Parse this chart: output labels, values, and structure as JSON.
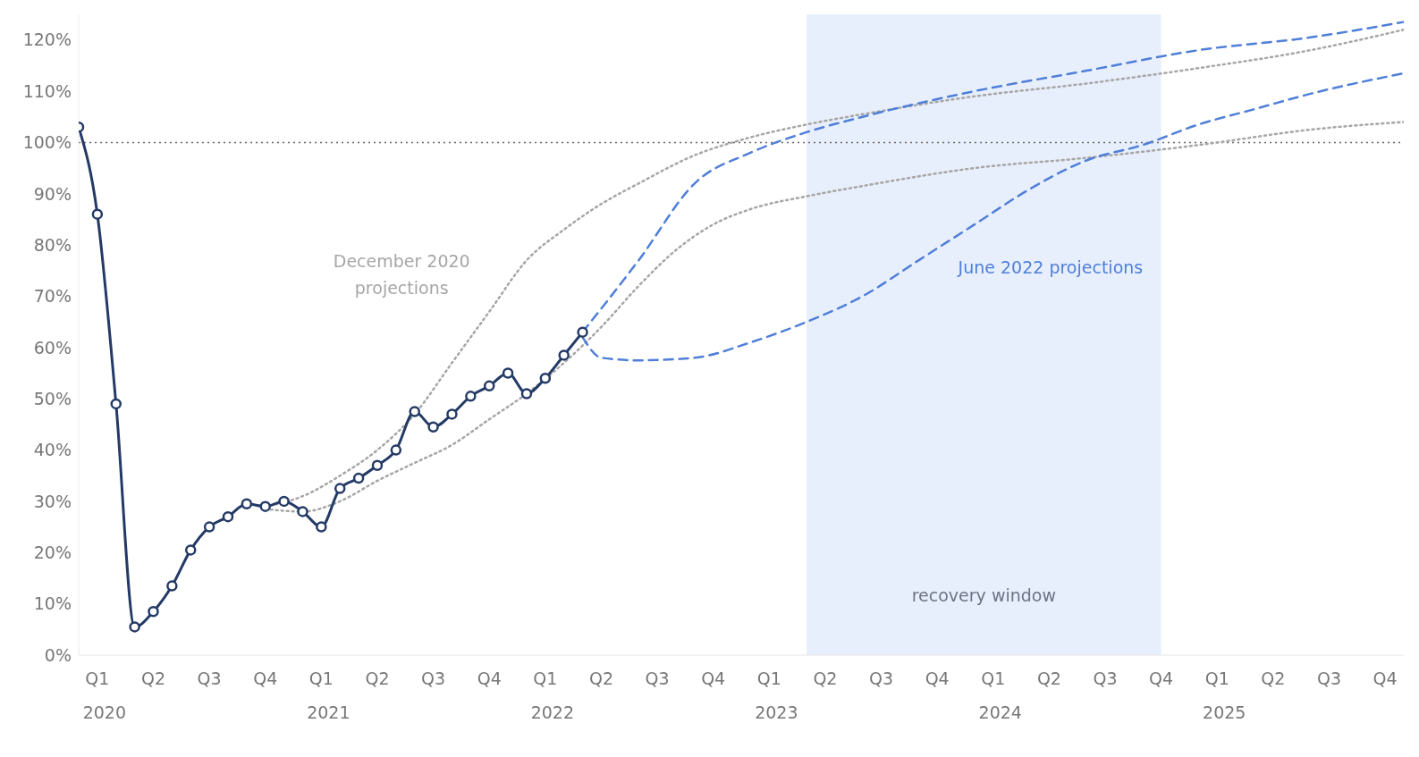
{
  "chart_data": {
    "type": "line",
    "xlim": [
      "2020-01",
      "2025-12"
    ],
    "x2lim": [
      "2020-01",
      "2025-12"
    ],
    "x2ticks": [
      {
        "value": "2020-02",
        "label": "2020"
      },
      {
        "value": "2021-02",
        "label": "2021"
      },
      {
        "value": "2022-02",
        "label": "2022"
      },
      {
        "value": "2023-02",
        "label": "2023"
      },
      {
        "value": "2024-02",
        "label": "2024"
      },
      {
        "value": "2025-02",
        "label": "2025"
      }
    ],
    "xticks": [
      {
        "value": "2020-02",
        "label": "Q1"
      },
      {
        "value": "2020-05",
        "label": "Q2"
      },
      {
        "value": "2020-08",
        "label": "Q3"
      },
      {
        "value": "2020-11",
        "label": "Q4"
      },
      {
        "value": "2021-02",
        "label": "Q1"
      },
      {
        "value": "2021-05",
        "label": "Q2"
      },
      {
        "value": "2021-08",
        "label": "Q3"
      },
      {
        "value": "2021-11",
        "label": "Q4"
      },
      {
        "value": "2022-02",
        "label": "Q1"
      },
      {
        "value": "2022-05",
        "label": "Q2"
      },
      {
        "value": "2022-08",
        "label": "Q3"
      },
      {
        "value": "2022-11",
        "label": "Q4"
      },
      {
        "value": "2023-02",
        "label": "Q1"
      },
      {
        "value": "2023-05",
        "label": "Q2"
      },
      {
        "value": "2023-08",
        "label": "Q3"
      },
      {
        "value": "2023-11",
        "label": "Q4"
      },
      {
        "value": "2024-02",
        "label": "Q1"
      },
      {
        "value": "2024-05",
        "label": "Q2"
      },
      {
        "value": "2024-08",
        "label": "Q3"
      },
      {
        "value": "2024-11",
        "label": "Q4"
      },
      {
        "value": "2025-02",
        "label": "Q1"
      },
      {
        "value": "2025-05",
        "label": "Q2"
      },
      {
        "value": "2025-08",
        "label": "Q3"
      },
      {
        "value": "2025-11",
        "label": "Q4"
      }
    ],
    "ylim": [
      0,
      125
    ],
    "yticks": [
      {
        "value": 0,
        "label": "0%"
      },
      {
        "value": 10,
        "label": "10%"
      },
      {
        "value": 20,
        "label": "20%"
      },
      {
        "value": 30,
        "label": "30%"
      },
      {
        "value": 40,
        "label": "40%"
      },
      {
        "value": 50,
        "label": "50%"
      },
      {
        "value": 60,
        "label": "60%"
      },
      {
        "value": 70,
        "label": "70%"
      },
      {
        "value": 80,
        "label": "80%"
      },
      {
        "value": 90,
        "label": "90%"
      },
      {
        "value": 100,
        "label": "100%"
      },
      {
        "value": 110,
        "label": "110%"
      },
      {
        "value": 120,
        "label": "120%"
      }
    ],
    "series": [
      {
        "name": "December 2020 projections",
        "color": "#a6a6a6",
        "line_style": "dotted",
        "marker": "none",
        "x": [
          "2020-11",
          "2021-01",
          "2021-03",
          "2021-05",
          "2021-07",
          "2021-09",
          "2021-11",
          "2022-01",
          "2022-03",
          "2022-05",
          "2022-07",
          "2022-10",
          "2023-01",
          "2023-04",
          "2023-07",
          "2024-01",
          "2024-07",
          "2025-01",
          "2025-07",
          "2025-12"
        ],
        "values": [
          29,
          31,
          35,
          40,
          47,
          57,
          67,
          77,
          83,
          88,
          92,
          97.5,
          101,
          103.5,
          105.5,
          109,
          111.5,
          114.5,
          118,
          122
        ]
      },
      {
        "color": "#a6a6a6",
        "line_style": "dotted",
        "marker": "none",
        "x": [
          "2020-11",
          "2021-01",
          "2021-03",
          "2021-05",
          "2021-07",
          "2021-09",
          "2021-11",
          "2022-01",
          "2022-03",
          "2022-05",
          "2022-07",
          "2022-09",
          "2022-11",
          "2023-01",
          "2023-04",
          "2023-07",
          "2024-01",
          "2024-07",
          "2025-01",
          "2025-07",
          "2025-12"
        ],
        "values": [
          28.5,
          28,
          30,
          34,
          37.5,
          41,
          46,
          51,
          57,
          64,
          72,
          79,
          84,
          87,
          89.5,
          91.5,
          95,
          97,
          99.5,
          102.5,
          104
        ]
      },
      {
        "color": "#4f7fd8",
        "line_style": "dashed",
        "marker": "none",
        "x": [
          "2022-04",
          "2022-07",
          "2022-10",
          "2023-01",
          "2023-04",
          "2023-07",
          "2024-01",
          "2024-07",
          "2025-01",
          "2025-07",
          "2025-12"
        ],
        "values": [
          63,
          77,
          92,
          98,
          102,
          105,
          110,
          114,
          118,
          120.5,
          123.5
        ]
      },
      {
        "name": "June 2022 projections",
        "color": "#4f7fd8",
        "line_style": "dashed",
        "marker": "none",
        "x": [
          "2022-04",
          "2022-05",
          "2022-07",
          "2022-10",
          "2023-01",
          "2023-04",
          "2023-07",
          "2023-10",
          "2024-01",
          "2024-04",
          "2024-07",
          "2024-10",
          "2025-01",
          "2025-04",
          "2025-07",
          "2025-12"
        ],
        "values": [
          62,
          58,
          57.5,
          58,
          61,
          65,
          70,
          77,
          84,
          91,
          96.5,
          99.5,
          103.5,
          106.5,
          109.5,
          113.5
        ]
      },
      {
        "color": "#243a66",
        "line_style": "solid",
        "marker": "circle",
        "x": [
          "2020-01",
          "2020-02",
          "2020-03",
          "2020-04",
          "2020-05",
          "2020-06",
          "2020-07",
          "2020-08",
          "2020-09",
          "2020-10",
          "2020-11",
          "2020-12",
          "2021-01",
          "2021-02",
          "2021-03",
          "2021-04",
          "2021-05",
          "2021-06",
          "2021-07",
          "2021-08",
          "2021-09",
          "2021-10",
          "2021-11",
          "2021-12",
          "2022-01",
          "2022-02",
          "2022-03",
          "2022-04"
        ],
        "values": [
          103,
          86,
          49,
          5.5,
          8.5,
          13.5,
          20.5,
          25,
          27,
          29.5,
          29,
          30,
          28,
          25,
          32.5,
          34.5,
          37,
          40,
          47.5,
          44.5,
          47,
          50.5,
          52.5,
          55,
          51,
          54,
          58.5,
          63
        ]
      }
    ],
    "ref_lines": [
      {
        "axis": "y",
        "value": 100,
        "color": "#666666",
        "line_style": "dotted"
      }
    ],
    "bands": [
      {
        "axis": "x",
        "from": "2023-04",
        "to": "2024-11",
        "label": "recovery window",
        "color": "#e8effc"
      }
    ]
  }
}
